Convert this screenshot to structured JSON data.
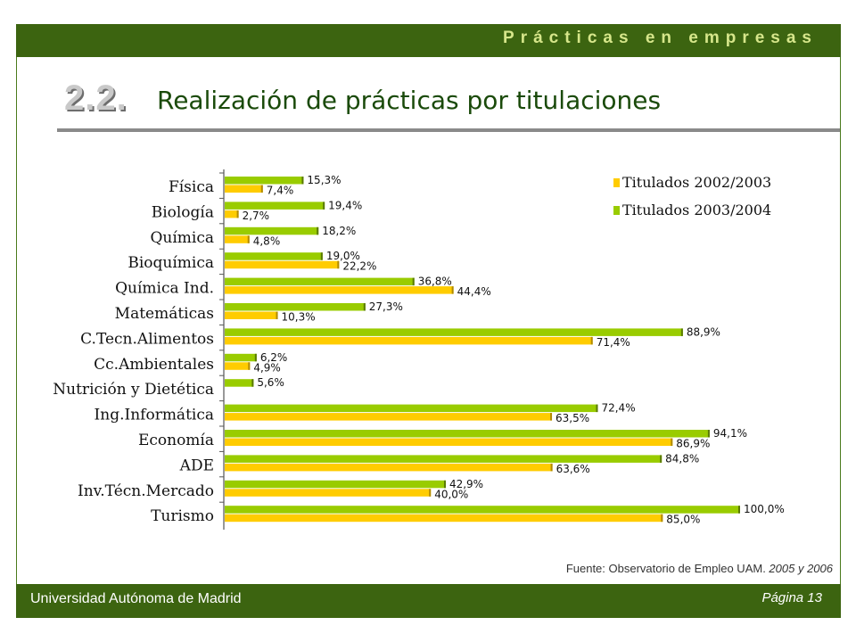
{
  "header": {
    "banner": "Prácticas en empresas"
  },
  "title": {
    "number": "2.2.",
    "text": "Realización de prácticas por titulaciones"
  },
  "colors": {
    "band": "#3c6410",
    "series_2002": "#ffcc00",
    "series_2003": "#99cc00"
  },
  "chart_data": {
    "type": "bar",
    "orientation": "horizontal",
    "categories": [
      "Física",
      "Biología",
      "Química",
      "Bioquímica",
      "Química Ind.",
      "Matemáticas",
      "C.Tecn.Alimentos",
      "Cc.Ambientales",
      "Nutrición y Dietética",
      "Ing.Informática",
      "Economía",
      "ADE",
      "Inv.Técn.Mercado",
      "Turismo"
    ],
    "series": [
      {
        "name": "Titulados 2003/2004",
        "color": "#99cc00",
        "values": [
          15.3,
          19.4,
          18.2,
          19.0,
          36.8,
          27.3,
          88.9,
          6.2,
          5.6,
          72.4,
          94.1,
          84.8,
          42.9,
          100.0
        ],
        "labels": [
          "15,3%",
          "19,4%",
          "18,2%",
          "19,0%",
          "36,8%",
          "27,3%",
          "88,9%",
          "6,2%",
          "5,6%",
          "72,4%",
          "94,1%",
          "84,8%",
          "42,9%",
          "100,0%"
        ]
      },
      {
        "name": "Titulados 2002/2003",
        "color": "#ffcc00",
        "values": [
          7.4,
          2.7,
          4.8,
          22.2,
          44.4,
          10.3,
          71.4,
          4.9,
          null,
          63.5,
          86.9,
          63.6,
          40.0,
          85.0
        ],
        "labels": [
          "7,4%",
          "2,7%",
          "4,8%",
          "22,2%",
          "44,4%",
          "10,3%",
          "71,4%",
          "4,9%",
          null,
          "63,5%",
          "86,9%",
          "63,6%",
          "40,0%",
          "85,0%"
        ]
      }
    ],
    "legend": {
      "position": "top-right",
      "items": [
        "Titulados 2002/2003",
        "Titulados 2003/2004"
      ]
    },
    "xlim": [
      0,
      100
    ],
    "grid": false
  },
  "source": {
    "prefix": "Fuente: Observatorio de Empleo UAM. ",
    "years": "2005 y 2006"
  },
  "footer": {
    "institution": "Universidad Autónoma de Madrid",
    "page": "Página 13"
  }
}
